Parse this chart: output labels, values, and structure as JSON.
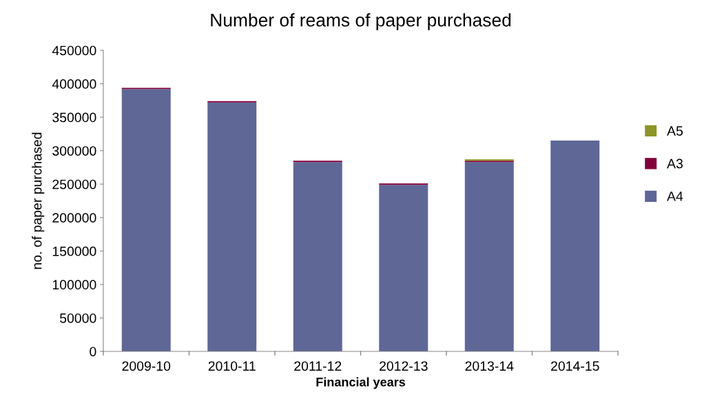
{
  "chart_data": {
    "type": "bar",
    "title": "Number of reams of paper purchased",
    "xlabel": "Financial years",
    "ylabel": "no. of paper purchased",
    "categories": [
      "2009-10",
      "2010-11",
      "2011-12",
      "2012-13",
      "2013-14",
      "2014-15"
    ],
    "stacked": true,
    "series": [
      {
        "name": "A4",
        "color": "#5f6796",
        "values": [
          392000,
          372000,
          283000,
          249000,
          283000,
          315000
        ]
      },
      {
        "name": "A3",
        "color": "#82003c",
        "values": [
          2000,
          2000,
          2000,
          2000,
          2000,
          0
        ]
      },
      {
        "name": "A5",
        "color": "#8c9624",
        "values": [
          0,
          0,
          0,
          0,
          2000,
          0
        ]
      }
    ],
    "ylim": [
      0,
      450000
    ],
    "yticks": [
      0,
      50000,
      100000,
      150000,
      200000,
      250000,
      300000,
      350000,
      400000,
      450000
    ],
    "grid": false,
    "legend": "right"
  }
}
